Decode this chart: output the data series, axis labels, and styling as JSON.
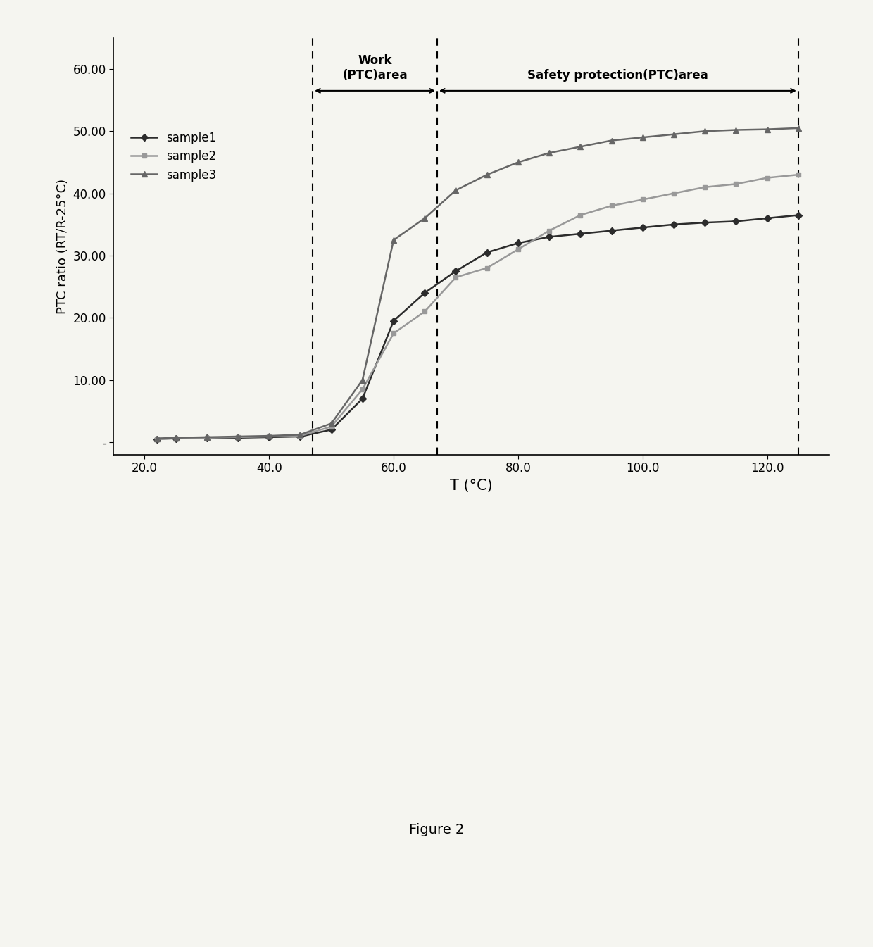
{
  "title": "",
  "xlabel": "T (°C)",
  "ylabel": "PTC ratio (RT/R-25°C)",
  "xlim": [
    15,
    130
  ],
  "ylim": [
    -2,
    65
  ],
  "xticks": [
    20.0,
    40.0,
    60.0,
    80.0,
    100.0,
    120.0
  ],
  "yticks": [
    0,
    10.0,
    20.0,
    30.0,
    40.0,
    50.0,
    60.0
  ],
  "ytick_labels": [
    "-",
    "10.00",
    "20.00",
    "30.00",
    "40.00",
    "50.00",
    "60.00"
  ],
  "vline1_x": 47,
  "vline2_x": 67,
  "vline3_x": 125,
  "work_area_label": "Work\n(PTC)area",
  "safety_area_label": "Safety protection(PTC)area",
  "sample1_color": "#2c2c2c",
  "sample2_color": "#999999",
  "sample3_color": "#666666",
  "sample1_x": [
    22,
    25,
    30,
    35,
    40,
    45,
    50,
    55,
    60,
    65,
    70,
    75,
    80,
    85,
    90,
    95,
    100,
    105,
    110,
    115,
    120,
    125
  ],
  "sample1_y": [
    0.5,
    0.6,
    0.7,
    0.7,
    0.8,
    0.9,
    2.0,
    7.0,
    19.5,
    24.0,
    27.5,
    30.5,
    32.0,
    33.0,
    33.5,
    34.0,
    34.5,
    35.0,
    35.3,
    35.5,
    36.0,
    36.5
  ],
  "sample2_x": [
    22,
    25,
    30,
    35,
    40,
    45,
    50,
    55,
    60,
    65,
    70,
    75,
    80,
    85,
    90,
    95,
    100,
    105,
    110,
    115,
    120,
    125
  ],
  "sample2_y": [
    0.5,
    0.6,
    0.7,
    0.8,
    0.9,
    1.0,
    2.5,
    8.5,
    17.5,
    21.0,
    26.5,
    28.0,
    31.0,
    34.0,
    36.5,
    38.0,
    39.0,
    40.0,
    41.0,
    41.5,
    42.5,
    43.0
  ],
  "sample3_x": [
    22,
    25,
    30,
    35,
    40,
    45,
    50,
    55,
    60,
    65,
    70,
    75,
    80,
    85,
    90,
    95,
    100,
    105,
    110,
    115,
    120,
    125
  ],
  "sample3_y": [
    0.6,
    0.7,
    0.8,
    0.9,
    1.0,
    1.2,
    3.0,
    10.0,
    32.5,
    36.0,
    40.5,
    43.0,
    45.0,
    46.5,
    47.5,
    48.5,
    49.0,
    49.5,
    50.0,
    50.2,
    50.3,
    50.5
  ],
  "figure_caption": "Figure 2",
  "background_color": "#f5f5f0",
  "legend_entries": [
    "sample1",
    "sample2",
    "sample3"
  ]
}
